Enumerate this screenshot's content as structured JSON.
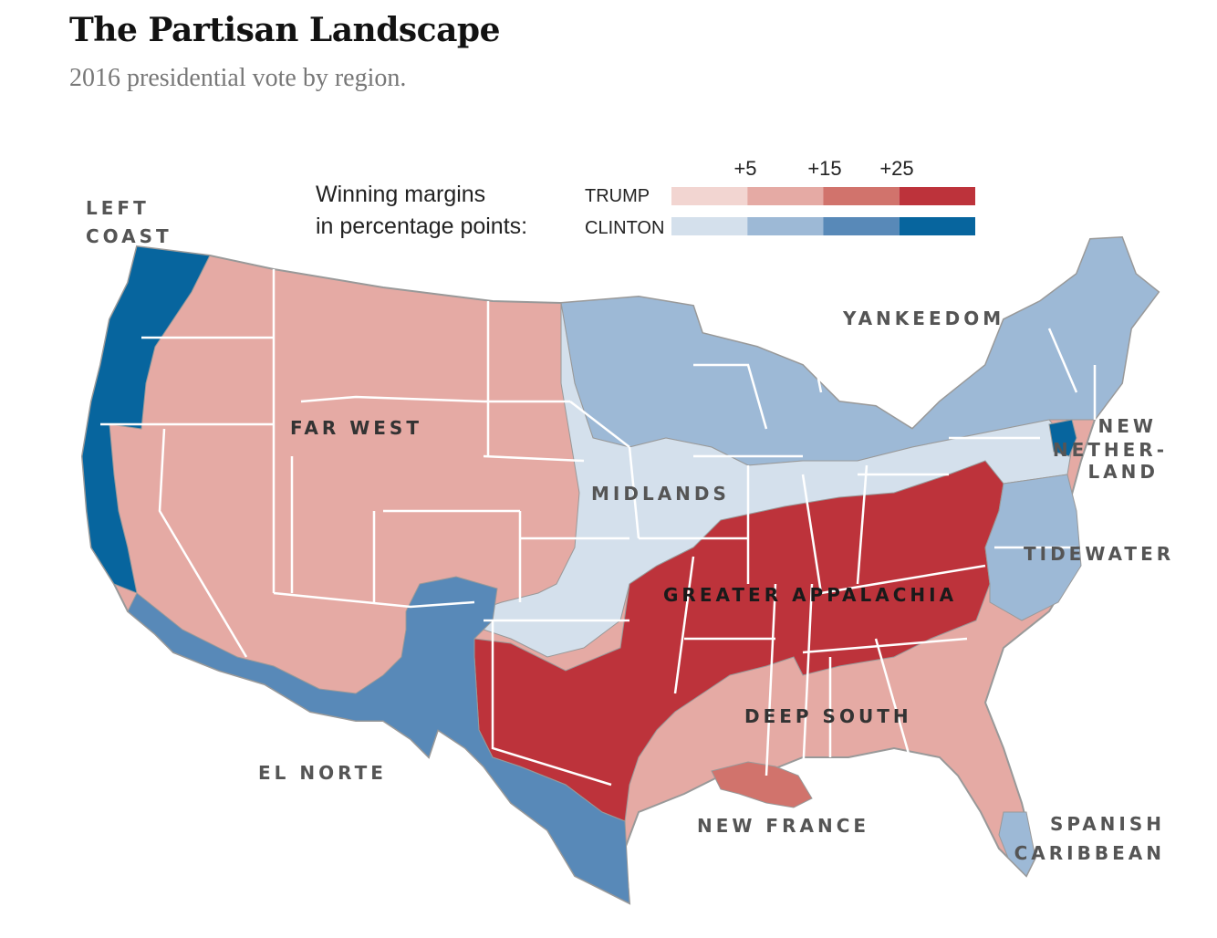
{
  "header": {
    "title": "The Partisan Landscape",
    "subtitle": "2016 presidential vote by region."
  },
  "legend": {
    "caption_line1": "Winning margins",
    "caption_line2": "in percentage points:",
    "trump_label": "TRUMP",
    "clinton_label": "CLINTON",
    "ticks": [
      "+5",
      "+15",
      "+25"
    ],
    "trump_colors": [
      "#f2d5d1",
      "#e5aaa4",
      "#d1736c",
      "#bd333b"
    ],
    "clinton_colors": [
      "#d4e0ec",
      "#9db9d6",
      "#5889b8",
      "#07659e"
    ]
  },
  "regions": [
    {
      "label_lines": [
        "LEFT",
        "COAST"
      ],
      "color": "#07659e"
    },
    {
      "label_lines": [
        "FAR WEST"
      ],
      "color": "#e5aaa4"
    },
    {
      "label_lines": [
        "YANKEEDOM"
      ],
      "color": "#9db9d6"
    },
    {
      "label_lines": [
        "MIDLANDS"
      ],
      "color": "#d4e0ec"
    },
    {
      "label_lines": [
        "NEW",
        "NETHER-",
        "LAND"
      ],
      "color": "#07659e"
    },
    {
      "label_lines": [
        "TIDEWATER"
      ],
      "color": "#9db9d6"
    },
    {
      "label_lines": [
        "GREATER APPALACHIA"
      ],
      "color": "#bd333b"
    },
    {
      "label_lines": [
        "EL NORTE"
      ],
      "color": "#5889b8"
    },
    {
      "label_lines": [
        "DEEP SOUTH"
      ],
      "color": "#e5aaa4"
    },
    {
      "label_lines": [
        "NEW FRANCE"
      ],
      "color": "#d1736c"
    },
    {
      "label_lines": [
        "SPANISH",
        "CARIBBEAN"
      ],
      "color": "#9db9d6"
    }
  ]
}
